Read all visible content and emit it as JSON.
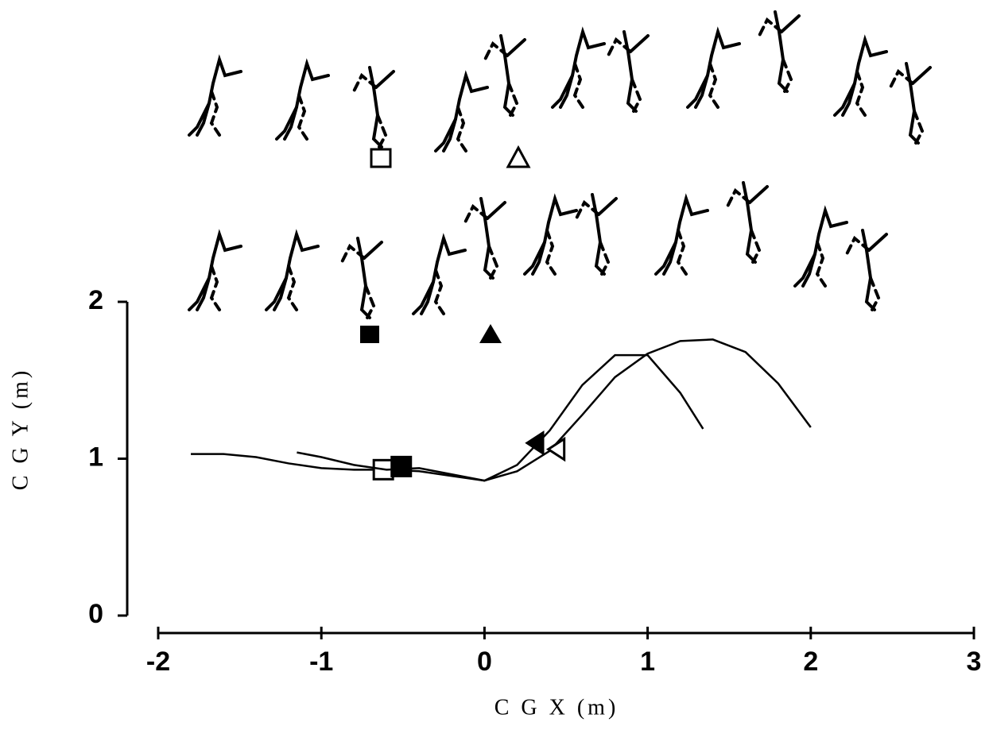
{
  "chart_data": {
    "type": "line",
    "xlabel": "C G X (m)",
    "ylabel": "C G Y (m)",
    "xlim": [
      -2,
      3
    ],
    "xticks": [
      -2,
      -1,
      0,
      1,
      2,
      3
    ],
    "ylim": [
      0,
      2
    ],
    "yticks": [
      0,
      1,
      2
    ],
    "grid": false,
    "series": [
      {
        "color": "#000000",
        "filled": false,
        "x": [
          -1.8,
          -1.6,
          -1.4,
          -1.2,
          -1.0,
          -0.8,
          -0.6,
          -0.4,
          -0.2,
          0,
          0.2,
          0.4,
          0.6,
          0.8,
          1.0,
          1.2,
          1.4,
          1.6,
          1.8,
          2.0
        ],
        "values": [
          1.03,
          1.03,
          1.01,
          0.97,
          0.94,
          0.93,
          0.93,
          0.92,
          0.89,
          0.86,
          0.92,
          1.05,
          1.28,
          1.52,
          1.67,
          1.75,
          1.76,
          1.68,
          1.48,
          1.2
        ],
        "markers": [
          {
            "shape": "square",
            "x": -0.62,
            "y": 0.93
          },
          {
            "shape": "triangle",
            "x": 0.44,
            "y": 1.06
          }
        ]
      },
      {
        "color": "#000000",
        "filled": true,
        "x": [
          -1.15,
          -1.0,
          -0.8,
          -0.6,
          -0.4,
          -0.2,
          0,
          0.2,
          0.4,
          0.6,
          0.8,
          1.0,
          1.2,
          1.34
        ],
        "values": [
          1.04,
          1.01,
          0.96,
          0.93,
          0.94,
          0.9,
          0.86,
          0.96,
          1.18,
          1.47,
          1.66,
          1.66,
          1.42,
          1.19
        ],
        "markers": [
          {
            "shape": "square",
            "x": -0.51,
            "y": 0.95
          },
          {
            "shape": "triangle",
            "x": 0.31,
            "y": 1.1
          }
        ]
      }
    ]
  }
}
